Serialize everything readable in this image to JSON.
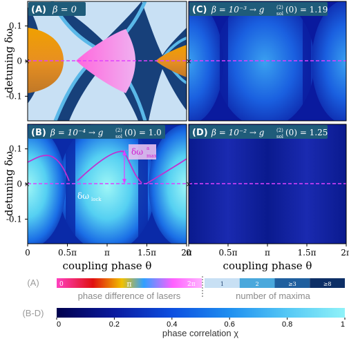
{
  "chart_data": [
    {
      "type": "heatmap",
      "panel": "(A)",
      "title_prefix": "(A)",
      "title_math": "β = 0",
      "beta": 0,
      "xlabel": "",
      "ylabel": "detuning δω",
      "x_ticks": [],
      "y_ticks": [
        "0.1",
        "0",
        "-0.1"
      ],
      "y_tick_values": [
        0.1,
        0,
        -0.1
      ],
      "ylim": [
        -0.17,
        0.17
      ],
      "xlim": [
        0,
        6.2832
      ],
      "colorscale": "phase difference of lasers / number of maxima",
      "lock_regions_center_theta": [
        0,
        3.1416,
        6.2832
      ],
      "dashed_line_y": 0
    },
    {
      "type": "heatmap",
      "panel": "(B)",
      "title_prefix": "(B)",
      "title_math": "β = 10⁻⁴ → g_sol⁽²⁾(0) = 1.0",
      "beta": 0.0001,
      "g2": 1.0,
      "xlabel": "coupling phase θ",
      "ylabel": "detuning δω",
      "x_ticks": [
        "0",
        "0.5π",
        "π",
        "1.5π",
        "2π"
      ],
      "y_ticks": [
        "0.1",
        "0",
        "-0.1"
      ],
      "annotations": [
        "δω_lock",
        "δω_max^a"
      ],
      "dashed_line_y": 0
    },
    {
      "type": "heatmap",
      "panel": "(C)",
      "title_prefix": "(C)",
      "title_math": "β = 10⁻³ → g_sol⁽²⁾(0) = 1.19",
      "beta": 0.001,
      "g2": 1.19,
      "xlabel": "",
      "ylabel": "",
      "x_ticks": [],
      "y_ticks": [],
      "dashed_line_y": 0
    },
    {
      "type": "heatmap",
      "panel": "(D)",
      "title_prefix": "(D)",
      "title_math": "β = 10⁻² → g_sol⁽²⁾(0) = 1.25",
      "beta": 0.01,
      "g2": 1.25,
      "xlabel": "coupling phase θ",
      "ylabel": "",
      "x_ticks": [
        "0",
        "0.5π",
        "π",
        "1.5π",
        "2π"
      ],
      "y_ticks": [],
      "dashed_line_y": 0
    }
  ],
  "labels": {
    "panelA": "(A)",
    "panelA_math": "β = 0",
    "panelB": "(B)",
    "panelB_math": "β = 10⁻⁴ → g",
    "panelB_sub": "sol",
    "panelB_sup": "(2)",
    "panelB_val": "(0) = 1.0",
    "panelC": "(C)",
    "panelC_math": "β = 10⁻³ → g",
    "panelC_sub": "sol",
    "panelC_sup": "(2)",
    "panelC_val": "(0) = 1.19",
    "panelD": "(D)",
    "panelD_math": "β = 10⁻² → g",
    "panelD_sub": "sol",
    "panelD_sup": "(2)",
    "panelD_val": "(0) = 1.25",
    "ylabel_top": "detuning δω",
    "ylabel_bottom": "detuning δω",
    "xlabel_left": "coupling phase θ",
    "xlabel_right": "coupling phase θ",
    "x_ticks": [
      "0",
      "0.5π",
      "π",
      "1.5π",
      "2π"
    ],
    "y_ticks": [
      "0.1",
      "0",
      "-0.1"
    ],
    "lock_label": "δω",
    "lock_sub": "lock",
    "max_label": "δω",
    "max_sup": "a",
    "max_sub": "max"
  },
  "colorbarA": {
    "row_label": "(A)",
    "phase_ticks": [
      "0",
      "π",
      "2π"
    ],
    "phase_caption": "phase difference of lasers",
    "maxima_ticks": [
      "1",
      "2",
      "≥3",
      "≥8"
    ],
    "maxima_caption": "number of maxima",
    "maxima_colors": [
      "#c8e0f4",
      "#4aa8dc",
      "#1f5f9e",
      "#0d2f66"
    ]
  },
  "colorbarB": {
    "row_label": "(B-D)",
    "ticks": [
      "0",
      "0.2",
      "0.4",
      "0.6",
      "0.8",
      "1"
    ],
    "tick_values": [
      0,
      0.2,
      0.4,
      0.6,
      0.8,
      1
    ],
    "caption": "phase correlation χ",
    "colors": [
      "#00004d",
      "#0a1a9e",
      "#0d4fe0",
      "#1f8ff0",
      "#55c8f5",
      "#8ff2f8"
    ]
  },
  "colors": {
    "magenta_dashed": "#e040ff",
    "axis": "#000000",
    "label_box": "#1f5c7a"
  }
}
